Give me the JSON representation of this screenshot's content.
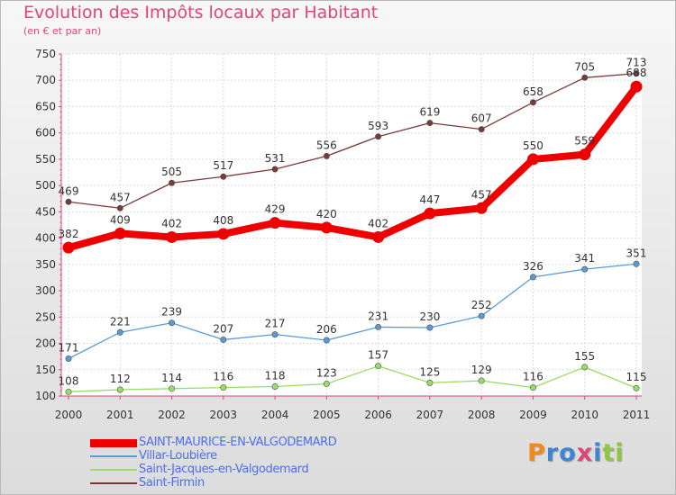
{
  "title": "Evolution des Impôts locaux par Habitant",
  "subtitle": "(en € et par an)",
  "chart_data": {
    "type": "line",
    "title": "Evolution des Impôts locaux par Habitant",
    "subtitle": "(en € et par an)",
    "x": [
      2000,
      2001,
      2002,
      2003,
      2004,
      2005,
      2006,
      2007,
      2008,
      2009,
      2010,
      2011
    ],
    "xlabel": "",
    "ylabel": "",
    "ylim": [
      100,
      750
    ],
    "yticks": [
      100,
      150,
      200,
      250,
      300,
      350,
      400,
      450,
      500,
      550,
      600,
      650,
      700,
      750
    ],
    "grid": true,
    "legend_position": "bottom-left",
    "series": [
      {
        "name": "SAINT-MAURICE-EN-VALGODEMARD",
        "color": "#ee0000",
        "emphasis": true,
        "values": [
          382,
          409,
          402,
          408,
          429,
          420,
          402,
          447,
          457,
          550,
          559,
          688
        ]
      },
      {
        "name": "Villar-Loubière",
        "color": "#5b9bd5",
        "values": [
          171,
          221,
          239,
          207,
          217,
          206,
          231,
          230,
          252,
          326,
          341,
          351
        ]
      },
      {
        "name": "Saint-Jacques-en-Valgodemard",
        "color": "#99dd66",
        "values": [
          108,
          112,
          114,
          116,
          118,
          123,
          157,
          125,
          129,
          116,
          155,
          115
        ]
      },
      {
        "name": "Saint-Firmin",
        "color": "#7a3a3a",
        "values": [
          469,
          457,
          505,
          517,
          531,
          556,
          593,
          619,
          607,
          658,
          705,
          713
        ]
      }
    ]
  },
  "logo": {
    "letters": [
      {
        "char": "P",
        "color": "#f08a1c"
      },
      {
        "char": "r",
        "color": "#3c86d4"
      },
      {
        "char": "o",
        "color": "#3c86d4"
      },
      {
        "char": "x",
        "color": "#e0457a"
      },
      {
        "char": "i",
        "color": "#3c86d4"
      },
      {
        "char": "t",
        "color": "#8ec63f"
      },
      {
        "char": "i",
        "color": "#8ec63f"
      }
    ]
  }
}
